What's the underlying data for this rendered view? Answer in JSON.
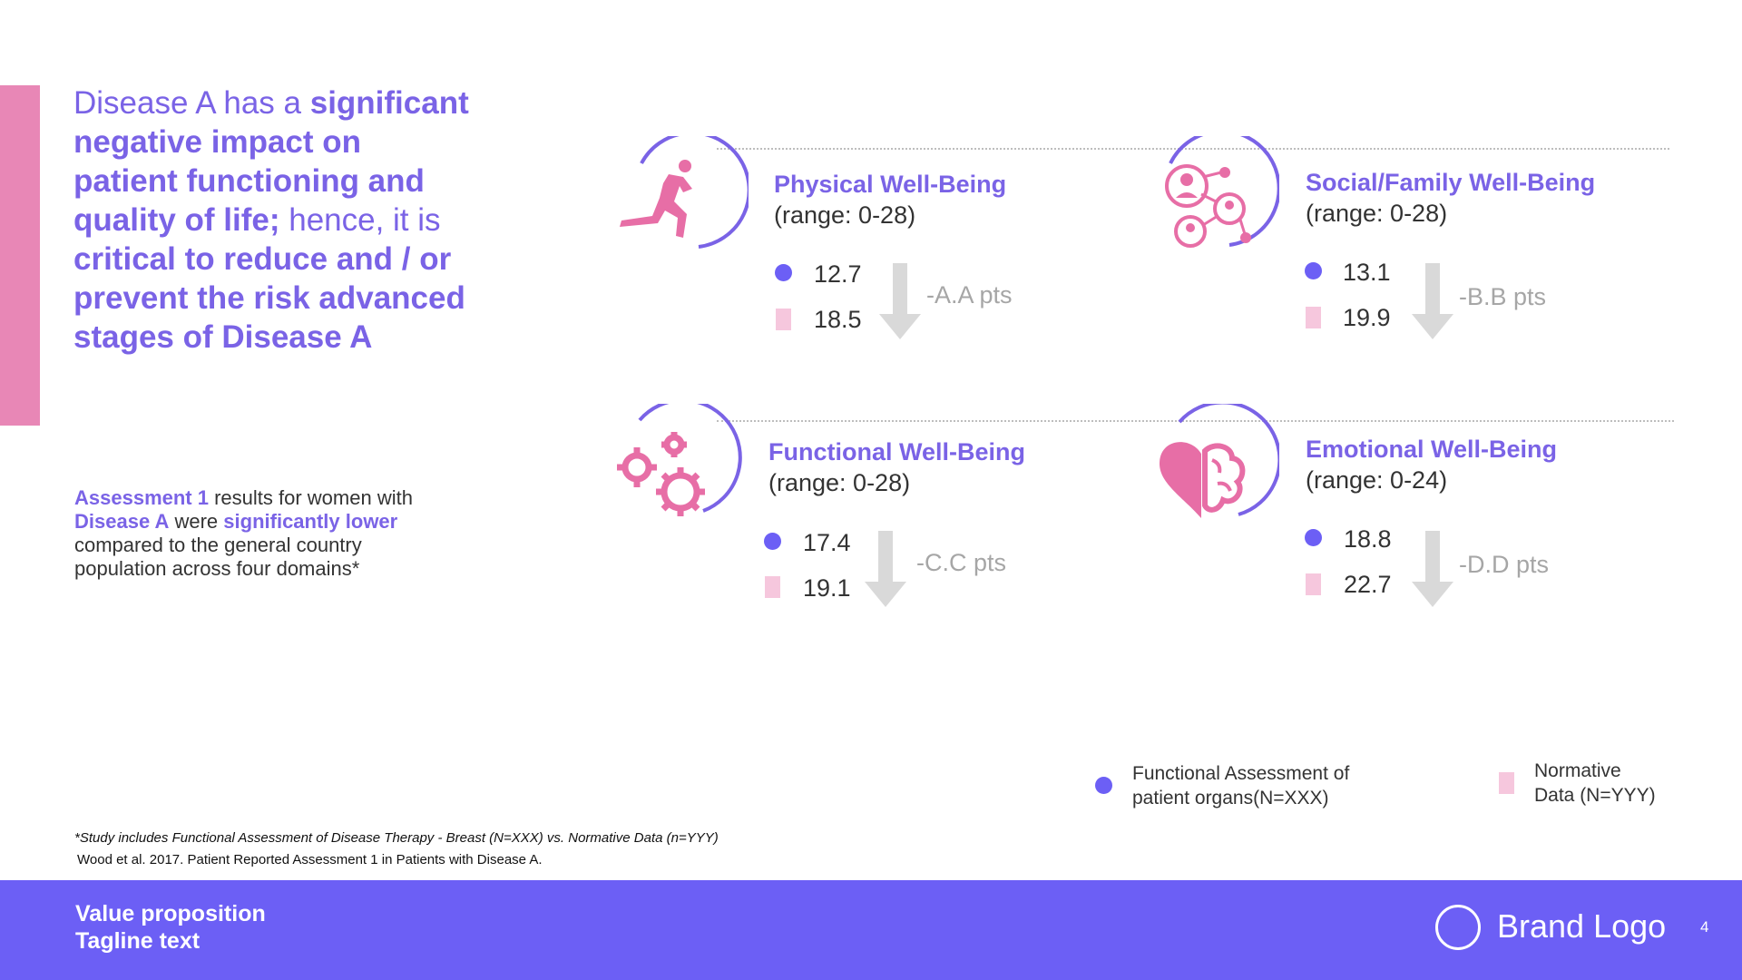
{
  "headline": {
    "part1": "Disease A has a ",
    "part2": "significant negative impact on patient functioning and quality of life;",
    "part3": " hence, it is ",
    "part4": "critical to reduce and / or prevent the risk advanced stages of Disease A"
  },
  "summary": {
    "s1": "Assessment 1",
    "s2": " results for women with ",
    "s3": "Disease A",
    "s4": " were ",
    "s5": "significantly lower",
    "s6": " compared to the general country population across four domains*"
  },
  "domains": [
    {
      "title": "Physical Well-Being",
      "range": "(range: 0-28)",
      "patient_value": "12.7",
      "normative_value": "18.5",
      "difference": "-A.A pts",
      "icon": "running-person-icon"
    },
    {
      "title": "Social/Family Well-Being",
      "range": "(range: 0-28)",
      "patient_value": "13.1",
      "normative_value": "19.9",
      "difference": "-B.B pts",
      "icon": "social-network-icon"
    },
    {
      "title": "Functional Well-Being",
      "range": "(range: 0-28)",
      "patient_value": "17.4",
      "normative_value": "19.1",
      "difference": "-C.C pts",
      "icon": "gears-icon"
    },
    {
      "title": "Emotional Well-Being",
      "range": "(range: 0-24)",
      "patient_value": "18.8",
      "normative_value": "22.7",
      "difference": "-D.D pts",
      "icon": "heart-brain-icon"
    }
  ],
  "legend": {
    "patient_line1": "Functional Assessment of",
    "patient_line2": "patient organs(N=XXX)",
    "normative_line1": "Normative",
    "normative_line2": "Data (N=YYY)"
  },
  "footnote": "*Study includes Functional Assessment of Disease Therapy - Breast (N=XXX) vs. Normative Data (n=YYY)",
  "reference": "Wood et al. 2017. Patient Reported Assessment 1 in Patients with Disease A.",
  "footer": {
    "line1": "Value proposition",
    "line2": "Tagline text",
    "logo": "Brand Logo",
    "page": "4"
  },
  "colors": {
    "purple": "#7a63e6",
    "pink": "#e887b6",
    "light_pink": "#f6c7dd",
    "footer": "#6c5ff5",
    "gray": "#a6a6a6"
  }
}
